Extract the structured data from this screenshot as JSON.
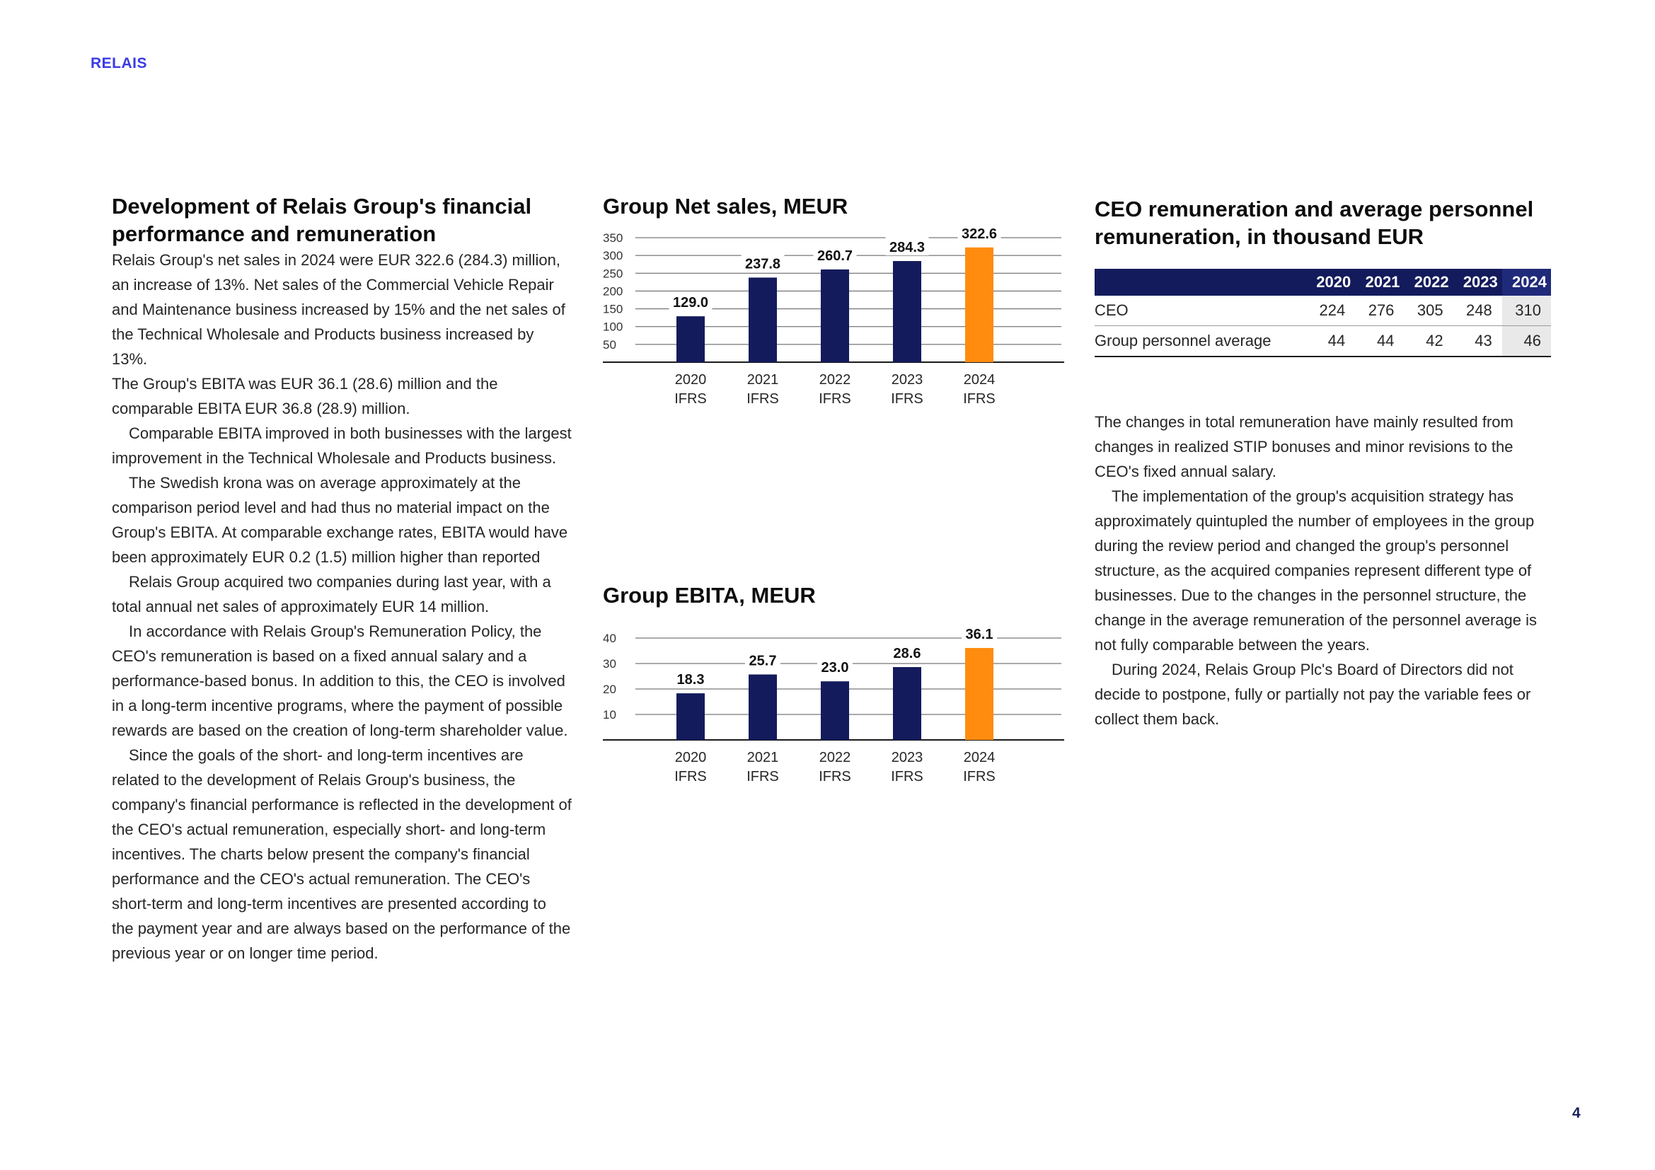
{
  "header": {
    "brand": "RELAIS"
  },
  "footer": {
    "page_number": "4"
  },
  "left": {
    "title": "Development of Relais Group's financial performance and remuneration",
    "paragraphs": [
      "Relais Group's net sales in 2024 were EUR 322.6 (284.3) million, an increase of 13%. Net sales of the Commercial Vehicle Repair and Maintenance business increased by 15% and the net sales of the Technical Wholesale and Products business increased by 13%.",
      "The Group's EBITA was EUR 36.1 (28.6) million and the comparable EBITA EUR 36.8 (28.9) million.",
      "Comparable EBITA improved in both businesses with the largest improvement in the Technical Wholesale and Products business.",
      "The Swedish krona was on average approximately at the comparison period level and had thus no material impact on the Group's EBITA. At comparable exchange rates, EBITA would have been approximately EUR 0.2 (1.5) million higher than reported",
      "Relais Group acquired two companies during last year, with a total annual net sales of approximately EUR 14 million.",
      "In accordance with Relais Group's Remuneration Policy, the CEO's remuneration is based on a fixed annual salary and a performance-based bonus. In addition to this, the CEO is involved in a long-term incentive programs, where the payment of possible rewards are based on the creation of long-term shareholder value.",
      "Since the goals of the short- and long-term incentives are related to the development of Relais Group's business, the company's financial performance is reflected in the development of the CEO's actual remuneration, especially short- and long-term incentives. The charts below present the company's financial performance and the CEO's actual remuneration. The CEO's short-term and long-term incentives are presented according to the payment year and are always based on the performance of the previous year or on longer time period."
    ]
  },
  "chart_data": [
    {
      "type": "bar",
      "title": "Group Net sales, MEUR",
      "categories": [
        "2020",
        "2021",
        "2022",
        "2023",
        "2024"
      ],
      "category_sublabel": "IFRS",
      "values": [
        129.0,
        237.8,
        260.7,
        284.3,
        322.6
      ],
      "value_labels": [
        "129.0",
        "237.8",
        "260.7",
        "284.3",
        "322.6"
      ],
      "yticks": [
        50,
        100,
        150,
        200,
        250,
        300,
        350
      ],
      "ylim": [
        0,
        350
      ],
      "grid": true,
      "colors": [
        "#131b5c",
        "#131b5c",
        "#131b5c",
        "#131b5c",
        "#ff8c0f"
      ]
    },
    {
      "type": "bar",
      "title": "Group EBITA, MEUR",
      "categories": [
        "2020",
        "2021",
        "2022",
        "2023",
        "2024"
      ],
      "category_sublabel": "IFRS",
      "values": [
        18.3,
        25.7,
        23.0,
        28.6,
        36.1
      ],
      "value_labels": [
        "18.3",
        "25.7",
        "23.0",
        "28.6",
        "36.1"
      ],
      "yticks": [
        10,
        20,
        30,
        40
      ],
      "ylim": [
        0,
        40
      ],
      "grid": true,
      "colors": [
        "#131b5c",
        "#131b5c",
        "#131b5c",
        "#131b5c",
        "#ff8c0f"
      ]
    }
  ],
  "right": {
    "title": "CEO remuneration and average personnel remuneration, in thousand EUR",
    "table": {
      "headers": [
        "",
        "2020",
        "2021",
        "2022",
        "2023",
        "2024"
      ],
      "rows": [
        {
          "label": "CEO",
          "values": [
            "224",
            "276",
            "305",
            "248",
            "310"
          ]
        },
        {
          "label": "Group personnel average",
          "values": [
            "44",
            "44",
            "42",
            "43",
            "46"
          ]
        }
      ]
    },
    "paragraphs": [
      "The changes in total remuneration have mainly resulted from changes in realized STIP bonuses and minor revisions to the CEO's fixed annual salary.",
      "The implementation of the group's acquisition strategy has approximately quintupled the number of employees in the group during the review period and changed the group's personnel structure, as the acquired companies represent different type of businesses. Due to the changes in the personnel structure, the change in the average remuneration of the personnel average is not fully comparable between the years.",
      "During 2024, Relais Group Plc's Board of Directors did not decide to postpone, fully or partially not pay the variable fees or collect them back."
    ]
  }
}
